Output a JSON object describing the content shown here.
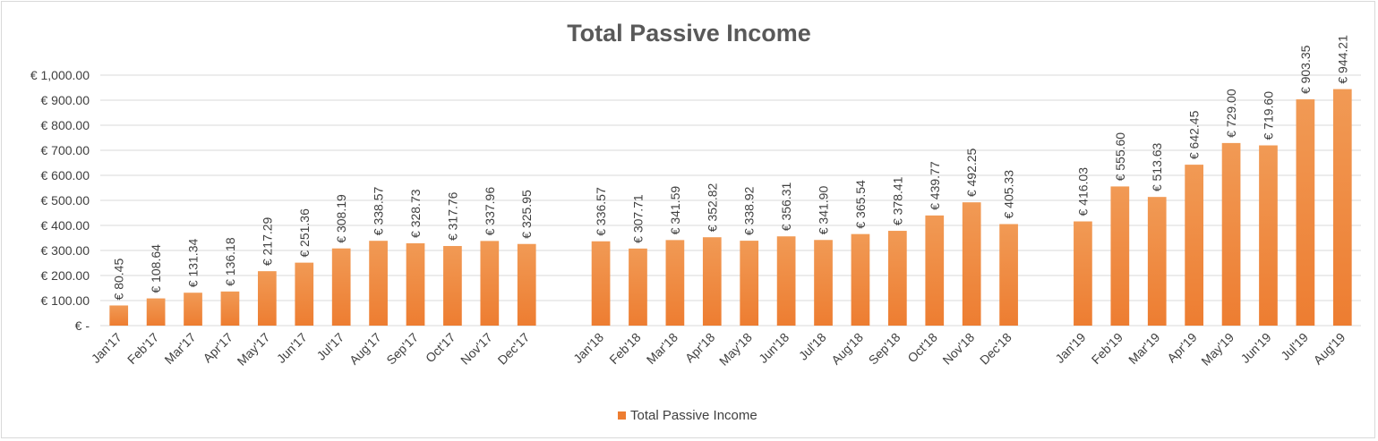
{
  "colors": {
    "bar_top": "#F19A55",
    "bar_bottom": "#ED7D31",
    "grid": "#D9D9D9",
    "text": "#404040"
  },
  "chart_data": {
    "type": "bar",
    "title": "Total Passive Income",
    "xlabel": "",
    "ylabel": "",
    "ylim": [
      0,
      1000
    ],
    "y_ticks": [
      0,
      100,
      200,
      300,
      400,
      500,
      600,
      700,
      800,
      900,
      1000
    ],
    "y_tick_labels": [
      "€ -",
      "€ 100.00",
      "€ 200.00",
      "€ 300.00",
      "€ 400.00",
      "€ 500.00",
      "€ 600.00",
      "€ 700.00",
      "€ 800.00",
      "€ 900.00",
      "€ 1,000.00"
    ],
    "grid": true,
    "legend_position": "bottom",
    "categories": [
      "Jan'17",
      "Feb'17",
      "Mar'17",
      "Apr'17",
      "May'17",
      "Jun'17",
      "Jul'17",
      "Aug'17",
      "Sep'17",
      "Oct'17",
      "Nov'17",
      "Dec'17",
      "",
      "Jan'18",
      "Feb'18",
      "Mar'18",
      "Apr'18",
      "May'18",
      "Jun'18",
      "Jul'18",
      "Aug'18",
      "Sep'18",
      "Oct'18",
      "Nov'18",
      "Dec'18",
      "",
      "Jan'19",
      "Feb'19",
      "Mar'19",
      "Apr'19",
      "May'19",
      "Jun'19",
      "Jul'19",
      "Aug'19"
    ],
    "series": [
      {
        "name": "Total Passive Income",
        "values": [
          80.45,
          108.64,
          131.34,
          136.18,
          217.29,
          251.36,
          308.19,
          338.57,
          328.73,
          317.76,
          337.96,
          325.95,
          null,
          336.57,
          307.71,
          341.59,
          352.82,
          338.92,
          356.31,
          341.9,
          365.54,
          378.41,
          439.77,
          492.25,
          405.33,
          null,
          416.03,
          555.6,
          513.63,
          642.45,
          729.0,
          719.6,
          903.35,
          944.21
        ],
        "data_labels": [
          "€ 80.45",
          "€ 108.64",
          "€ 131.34",
          "€ 136.18",
          "€ 217.29",
          "€ 251.36",
          "€ 308.19",
          "€ 338.57",
          "€ 328.73",
          "€ 317.76",
          "€ 337.96",
          "€ 325.95",
          "",
          "€ 336.57",
          "€ 307.71",
          "€ 341.59",
          "€ 352.82",
          "€ 338.92",
          "€ 356.31",
          "€ 341.90",
          "€ 365.54",
          "€ 378.41",
          "€ 439.77",
          "€ 492.25",
          "€ 405.33",
          "",
          "€ 416.03",
          "€ 555.60",
          "€ 513.63",
          "€ 642.45",
          "€ 729.00",
          "€ 719.60",
          "€ 903.35",
          "€ 944.21"
        ]
      }
    ]
  }
}
